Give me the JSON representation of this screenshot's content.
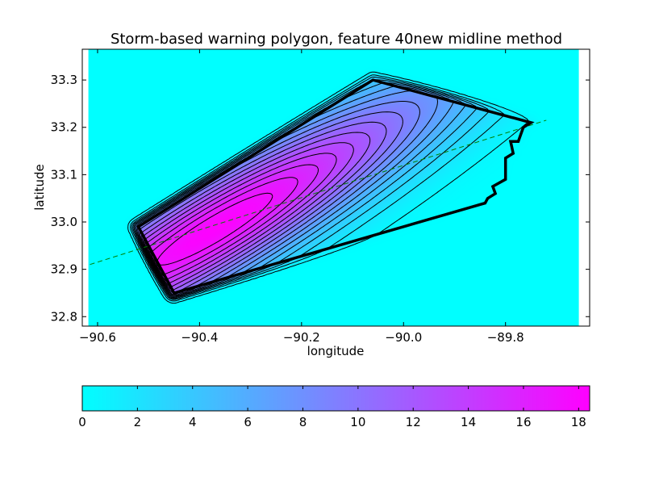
{
  "chart_data": {
    "type": "heatmap",
    "title": "Storm-based warning polygon, feature 40new midline method",
    "xlabel": "longitude",
    "ylabel": "latitude",
    "xlim": [
      -90.63,
      -89.635
    ],
    "ylim": [
      32.78,
      33.365
    ],
    "xticks": [
      -90.6,
      -90.4,
      -90.2,
      -90.0,
      -89.8
    ],
    "xtick_labels": [
      "−90.6",
      "−90.4",
      "−90.2",
      "−90.0",
      "−89.8"
    ],
    "yticks": [
      32.8,
      32.9,
      33.0,
      33.1,
      33.2,
      33.3
    ],
    "ytick_labels": [
      "32.8",
      "32.9",
      "33.0",
      "33.1",
      "33.2",
      "33.3"
    ],
    "grid": false,
    "colormap": {
      "low": "#00ffff",
      "high": "#ff00ff"
    },
    "colorbar": {
      "range": [
        0,
        18.4
      ],
      "ticks": [
        0,
        2,
        4,
        6,
        8,
        10,
        12,
        14,
        16,
        18
      ],
      "tick_labels": [
        "0",
        "2",
        "4",
        "6",
        "8",
        "10",
        "12",
        "14",
        "16",
        "18"
      ],
      "orientation": "horizontal"
    },
    "field": {
      "peak": [
        -90.37,
        32.985
      ],
      "peak_value": 18.2,
      "contour_count": 16
    },
    "warning_polygon": {
      "color": "#000000",
      "points": [
        [
          -90.52,
          32.99
        ],
        [
          -90.06,
          33.3
        ],
        [
          -89.75,
          33.21
        ],
        [
          -89.765,
          33.2
        ],
        [
          -89.775,
          33.17
        ],
        [
          -89.79,
          33.17
        ],
        [
          -89.785,
          33.145
        ],
        [
          -89.8,
          33.135
        ],
        [
          -89.8,
          33.09
        ],
        [
          -89.825,
          33.075
        ],
        [
          -89.82,
          33.06
        ],
        [
          -89.835,
          33.05
        ],
        [
          -89.84,
          33.04
        ],
        [
          -90.45,
          32.85
        ]
      ]
    },
    "midline": {
      "color": "#008000",
      "style": "dashed",
      "points": [
        [
          -90.63,
          32.905
        ],
        [
          -89.72,
          33.215
        ]
      ]
    }
  }
}
